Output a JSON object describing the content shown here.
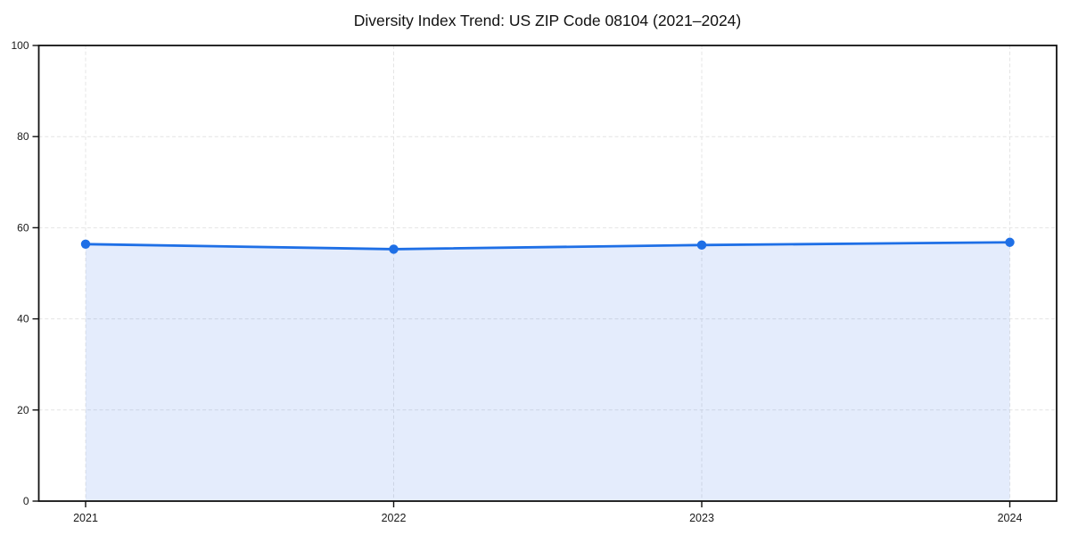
{
  "title": "Diversity Index Trend: US ZIP Code 08104 (2021–2024)",
  "chart_data": {
    "type": "area",
    "title": "Diversity Index Trend: US ZIP Code 08104 (2021–2024)",
    "categories": [
      "2021",
      "2022",
      "2023",
      "2024"
    ],
    "series": [
      {
        "name": "Diversity Index",
        "values": [
          56.4,
          55.3,
          56.2,
          56.8
        ]
      }
    ],
    "xlabel": "",
    "ylabel": "",
    "ylim": [
      0,
      100
    ],
    "yticks": [
      0,
      20,
      40,
      60,
      80,
      100
    ],
    "grid": true,
    "grid_style": "dashed",
    "legend": false,
    "markers": true,
    "colors": {
      "line": "#1e6fe6",
      "marker": "#1e6fe6",
      "area_fill": "rgba(31,100,230,0.12)",
      "gridline": "#e4e4e4",
      "spine": "#111111",
      "tick_text": "#1a1a1a",
      "background": "#ffffff"
    }
  }
}
